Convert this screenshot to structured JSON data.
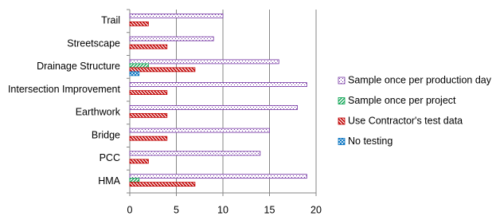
{
  "chart_data": {
    "type": "hbar",
    "categories": [
      "Trail",
      "Streetscape",
      "Drainage Structure",
      "Intersection Improvement",
      "Earthwork",
      "Bridge",
      "PCC",
      "HMA"
    ],
    "series": [
      {
        "name": "Sample once per production day",
        "color": "#7030a0",
        "values": [
          10,
          9,
          16,
          19,
          18,
          15,
          14,
          19
        ]
      },
      {
        "name": "Sample once per project",
        "color": "#00a04a",
        "values": [
          0,
          0,
          2,
          0,
          0,
          0,
          0,
          1
        ]
      },
      {
        "name": "Use Contractor's test data",
        "color": "#c00000",
        "values": [
          2,
          4,
          7,
          4,
          4,
          4,
          2,
          7
        ]
      },
      {
        "name": "No testing",
        "color": "#0070c0",
        "values": [
          0,
          0,
          1,
          0,
          0,
          0,
          0,
          0
        ]
      }
    ],
    "xlim": [
      0,
      20
    ],
    "xticks": [
      0,
      5,
      10,
      15,
      20
    ],
    "grid": true,
    "legend": "right"
  }
}
